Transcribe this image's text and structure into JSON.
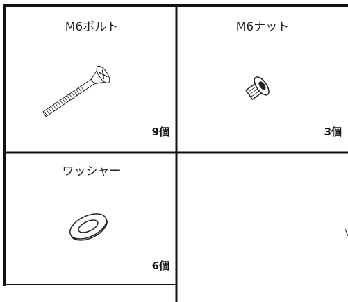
{
  "parts": [
    {
      "name": "M6ボルト",
      "quantity": "9個"
    },
    {
      "name": "M6ナット",
      "quantity": "3個"
    },
    {
      "name": "ワッシャー",
      "quantity": "6個"
    }
  ]
}
